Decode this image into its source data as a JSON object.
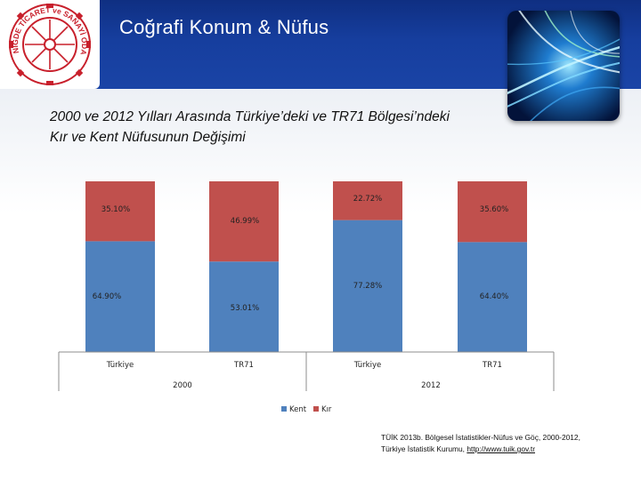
{
  "header": {
    "title": "Coğrafi Konum & Nüfus",
    "logo_text": "NİĞDE TİCARET ve SANAYİ ODASI"
  },
  "subtitle_lines": [
    "2000 ve 2012 Yılları Arasında Türkiye’deki ve TR71 Bölgesi’ndeki",
    "Kır ve Kent Nüfusunun Değişimi"
  ],
  "colors": {
    "kent": "#4f81bd",
    "kir": "#c0504d",
    "header_bg": "#163e9e",
    "logo_red": "#c8202c"
  },
  "chart_data": {
    "type": "bar",
    "stacked": true,
    "percent": true,
    "ylim": [
      0,
      100
    ],
    "grid": false,
    "legend_position": "bottom",
    "groups": [
      {
        "label": "2000",
        "categories": [
          "Türkiye",
          "TR71"
        ]
      },
      {
        "label": "2012",
        "categories": [
          "Türkiye",
          "TR71"
        ]
      }
    ],
    "categories": [
      "Türkiye",
      "TR71",
      "Türkiye",
      "TR71"
    ],
    "series": [
      {
        "name": "Kent",
        "values": [
          64.9,
          53.01,
          77.28,
          64.4
        ],
        "labels": [
          "64.90%",
          "53.01%",
          "77.28%",
          "64.40%"
        ]
      },
      {
        "name": "Kır",
        "values": [
          35.1,
          46.99,
          22.72,
          35.6
        ],
        "labels": [
          "35.10%",
          "46.99%",
          "22.72%",
          "35.60%"
        ]
      }
    ]
  },
  "source": {
    "line1": "TÜİK 2013b. Bölgesel İstatistikler-Nüfus ve Göç, 2000-2012,",
    "line2": "Türkiye İstatistik Kurumu,",
    "link": "http://www.tuik.gov.tr"
  }
}
